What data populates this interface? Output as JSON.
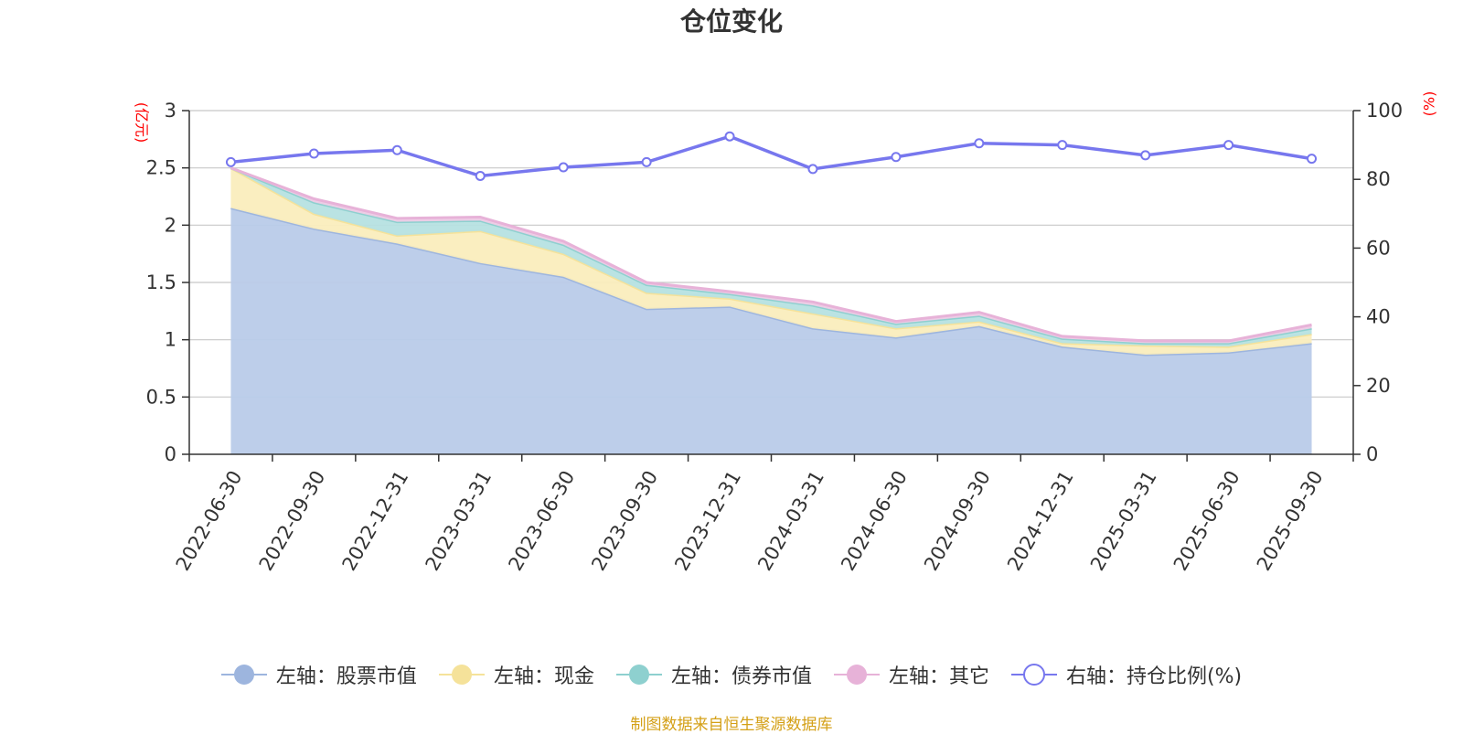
{
  "chart_data": {
    "type": "area",
    "title": "仓位变化",
    "source": "制图数据来自恒生聚源数据库",
    "left_unit": "(亿元)",
    "right_unit": "(%)",
    "categories": [
      "2022-06-30",
      "2022-09-30",
      "2022-12-31",
      "2023-03-31",
      "2023-06-30",
      "2023-09-30",
      "2023-12-31",
      "2024-03-31",
      "2024-06-30",
      "2024-09-30",
      "2024-12-31",
      "2025-03-31",
      "2025-06-30",
      "2025-09-30"
    ],
    "y_left": {
      "min": 0,
      "max": 3,
      "ticks": [
        "0",
        "0.5",
        "1",
        "1.5",
        "2",
        "2.5",
        "3"
      ]
    },
    "y_right": {
      "min": 0,
      "max": 100,
      "ticks": [
        "0",
        "20",
        "40",
        "60",
        "80",
        "100"
      ]
    },
    "stacked_series": [
      {
        "name": "左轴：股票市值",
        "color": "#9db5de",
        "fill": "#b9cbe9",
        "values": [
          2.15,
          1.97,
          1.84,
          1.67,
          1.55,
          1.27,
          1.29,
          1.1,
          1.02,
          1.12,
          0.94,
          0.87,
          0.89,
          0.97
        ]
      },
      {
        "name": "左轴：现金",
        "color": "#f5e29a",
        "fill": "#faedbd",
        "values": [
          0.35,
          0.13,
          0.07,
          0.28,
          0.2,
          0.14,
          0.07,
          0.13,
          0.08,
          0.04,
          0.03,
          0.08,
          0.05,
          0.08
        ]
      },
      {
        "name": "左轴：债券市值",
        "color": "#8ed0cf",
        "fill": "#b6e2e1",
        "values": [
          0.0,
          0.1,
          0.12,
          0.09,
          0.08,
          0.07,
          0.04,
          0.07,
          0.04,
          0.05,
          0.04,
          0.02,
          0.03,
          0.05
        ]
      },
      {
        "name": "左轴：其它",
        "color": "#e7b2d8",
        "fill": "#efcce6",
        "values": [
          0.0,
          0.03,
          0.03,
          0.03,
          0.03,
          0.02,
          0.02,
          0.03,
          0.02,
          0.03,
          0.02,
          0.02,
          0.02,
          0.03
        ]
      }
    ],
    "line_series": {
      "name": "右轴：持仓比例(%)",
      "color": "#7777ee",
      "values": [
        85.0,
        87.5,
        88.5,
        81.0,
        83.5,
        85.0,
        92.5,
        83.0,
        86.5,
        90.5,
        90.0,
        87.0,
        90.0,
        86.0
      ]
    },
    "legend_position": "bottom"
  }
}
